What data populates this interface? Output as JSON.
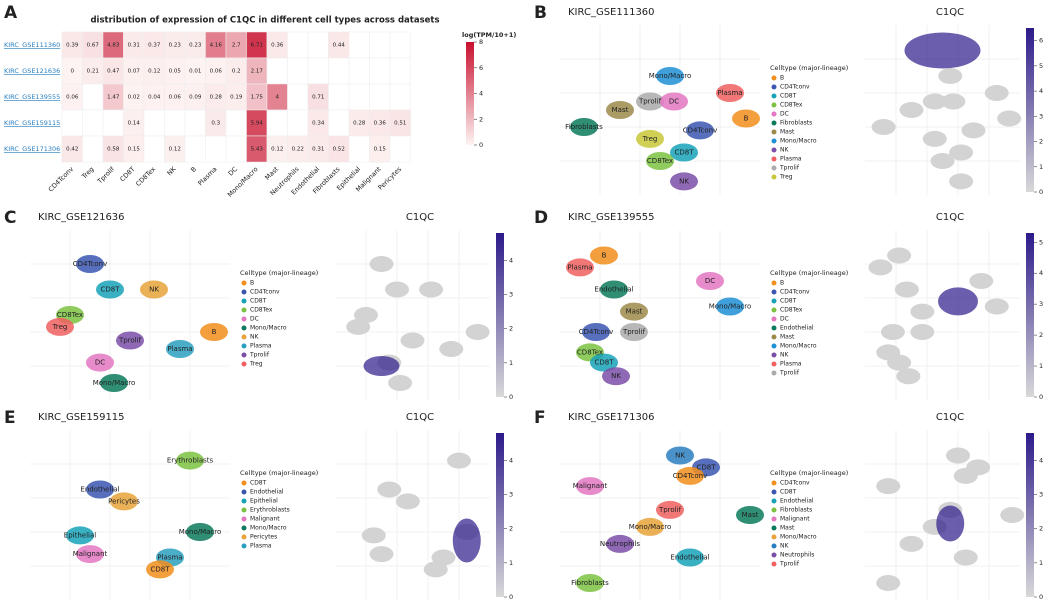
{
  "chart_data": [
    {
      "type": "heatmap",
      "label": "A",
      "title": "distribution of expression of C1QC in different cell types across datasets",
      "rows": [
        "KIRC_GSE111360",
        "KIRC_GSE121636",
        "KIRC_GSE139555",
        "KIRC_GSE159115",
        "KIRC_GSE171306"
      ],
      "categories": [
        "CD4Tconv",
        "Treg",
        "Tprolif",
        "CD8T",
        "CD8Tex",
        "NK",
        "B",
        "Plasma",
        "DC",
        "Mono/Macro",
        "Mast",
        "Neutrophils",
        "Endothelial",
        "Fibroblasts",
        "Epithelial",
        "Malignant",
        "Pericytes"
      ],
      "values": [
        [
          0.39,
          0.67,
          4.83,
          0.31,
          0.37,
          0.23,
          0.23,
          4.16,
          2.7,
          6.71,
          0.36,
          null,
          null,
          0.44,
          null,
          null,
          null
        ],
        [
          0,
          0.21,
          0.47,
          0.07,
          0.12,
          0.05,
          0.01,
          0.06,
          0.2,
          2.17,
          null,
          null,
          null,
          null,
          null,
          null,
          null
        ],
        [
          0.06,
          null,
          1.47,
          0.02,
          0.04,
          0.06,
          0.09,
          0.28,
          0.19,
          1.75,
          4,
          null,
          0.71,
          null,
          null,
          null,
          null
        ],
        [
          null,
          null,
          null,
          0.14,
          null,
          null,
          null,
          0.3,
          null,
          5.94,
          null,
          null,
          0.34,
          null,
          0.28,
          0.36,
          0.51
        ],
        [
          0.42,
          null,
          0.58,
          0.15,
          null,
          0.12,
          null,
          null,
          null,
          5.43,
          0.12,
          0.22,
          0.31,
          0.52,
          null,
          0.15,
          null
        ]
      ],
      "colorbar_title": "log(TPM/10+1)",
      "clim": [
        0,
        8
      ],
      "cticks": [
        0,
        2,
        4,
        6,
        8
      ],
      "color_low": "#fdf3f2",
      "color_high": "#c8102e"
    },
    {
      "type": "umap",
      "label": "B",
      "title": "KIRC_GSE111360",
      "feature": "C1QC",
      "legend_title": "Celltype (major-lineage)",
      "series": [
        {
          "name": "B",
          "color": "#f28e1c"
        },
        {
          "name": "CD4Tconv",
          "color": "#3a56b0"
        },
        {
          "name": "CD8T",
          "color": "#17a2b8"
        },
        {
          "name": "CD8Tex",
          "color": "#7cc242"
        },
        {
          "name": "DC",
          "color": "#e377c2"
        },
        {
          "name": "Fibroblasts",
          "color": "#0b7a5c"
        },
        {
          "name": "Mast",
          "color": "#9c8a4a"
        },
        {
          "name": "Mono/Macro",
          "color": "#1f8fd6"
        },
        {
          "name": "NK",
          "color": "#7b4fa8"
        },
        {
          "name": "Plasma",
          "color": "#f06060"
        },
        {
          "name": "Tprolif",
          "color": "#aaaaaa"
        },
        {
          "name": "Treg",
          "color": "#c8c83a"
        }
      ],
      "annotations": [
        "Mono/Macro",
        "Tprolif",
        "DC",
        "Mast",
        "Plasma",
        "B",
        "Fibroblasts",
        "Treg",
        "CD4Tconv",
        "CD8T",
        "CD8Tex",
        "NK"
      ],
      "clim": [
        0,
        6.5
      ],
      "cticks": [
        0,
        1,
        2,
        3,
        4,
        5,
        6
      ],
      "color_low": "#d9d9d9",
      "color_high": "#2c1a8a"
    },
    {
      "type": "umap",
      "label": "C",
      "title": "KIRC_GSE121636",
      "feature": "C1QC",
      "legend_title": "Celltype (major-lineage)",
      "series": [
        {
          "name": "B",
          "color": "#f28e1c"
        },
        {
          "name": "CD4Tconv",
          "color": "#3a56b0"
        },
        {
          "name": "CD8T",
          "color": "#17a2b8"
        },
        {
          "name": "CD8Tex",
          "color": "#7cc242"
        },
        {
          "name": "DC",
          "color": "#e377c2"
        },
        {
          "name": "Mono/Macro",
          "color": "#0b7a5c"
        },
        {
          "name": "NK",
          "color": "#e8a33a"
        },
        {
          "name": "Plasma",
          "color": "#2aa0c0"
        },
        {
          "name": "Tprolif",
          "color": "#7b4fa8"
        },
        {
          "name": "Treg",
          "color": "#f06060"
        }
      ],
      "annotations": [
        "CD4Tconv",
        "CD8T",
        "NK",
        "CD8Tex",
        "Treg",
        "B",
        "Plasma",
        "Tprolif",
        "DC",
        "Mono/Macro"
      ],
      "clim": [
        0,
        4.8
      ],
      "cticks": [
        0,
        1,
        2,
        3,
        4
      ],
      "color_low": "#d9d9d9",
      "color_high": "#2c1a8a"
    },
    {
      "type": "umap",
      "label": "D",
      "title": "KIRC_GSE139555",
      "feature": "C1QC",
      "legend_title": "Celltype (major-lineage)",
      "series": [
        {
          "name": "B",
          "color": "#f28e1c"
        },
        {
          "name": "CD4Tconv",
          "color": "#3a56b0"
        },
        {
          "name": "CD8T",
          "color": "#17a2b8"
        },
        {
          "name": "CD8Tex",
          "color": "#7cc242"
        },
        {
          "name": "DC",
          "color": "#e377c2"
        },
        {
          "name": "Endothelial",
          "color": "#0b7a5c"
        },
        {
          "name": "Mast",
          "color": "#9c8a4a"
        },
        {
          "name": "Mono/Macro",
          "color": "#1f8fd6"
        },
        {
          "name": "NK",
          "color": "#7b4fa8"
        },
        {
          "name": "Plasma",
          "color": "#f06060"
        },
        {
          "name": "Tprolif",
          "color": "#aaaaaa"
        }
      ],
      "annotations": [
        "B",
        "Plasma",
        "DC",
        "Endothelial",
        "Mast",
        "Mono/Macro",
        "CD4Tconv",
        "Tprolif",
        "CD8Tex",
        "CD8T",
        "NK"
      ],
      "clim": [
        0,
        5.3
      ],
      "cticks": [
        0,
        1,
        2,
        3,
        4,
        5
      ],
      "color_low": "#d9d9d9",
      "color_high": "#2c1a8a"
    },
    {
      "type": "umap",
      "label": "E",
      "title": "KIRC_GSE159115",
      "feature": "C1QC",
      "legend_title": "Celltype (major-lineage)",
      "series": [
        {
          "name": "CD8T",
          "color": "#f28e1c"
        },
        {
          "name": "Endothelial",
          "color": "#3a56b0"
        },
        {
          "name": "Epithelial",
          "color": "#17a2b8"
        },
        {
          "name": "Erythroblasts",
          "color": "#7cc242"
        },
        {
          "name": "Malignant",
          "color": "#e377c2"
        },
        {
          "name": "Mono/Macro",
          "color": "#0b7a5c"
        },
        {
          "name": "Pericytes",
          "color": "#e8a33a"
        },
        {
          "name": "Plasma",
          "color": "#2aa0c0"
        }
      ],
      "annotations": [
        "Erythroblasts",
        "Endothelial",
        "Pericytes",
        "Epithelial",
        "Mono/Macro",
        "Malignant",
        "Plasma",
        "CD8T"
      ],
      "clim": [
        0,
        4.8
      ],
      "cticks": [
        0,
        1,
        2,
        3,
        4
      ],
      "color_low": "#d9d9d9",
      "color_high": "#2c1a8a"
    },
    {
      "type": "umap",
      "label": "F",
      "title": "KIRC_GSE171306",
      "feature": "C1QC",
      "legend_title": "Celltype (major-lineage)",
      "series": [
        {
          "name": "CD4Tconv",
          "color": "#f28e1c"
        },
        {
          "name": "CD8T",
          "color": "#3a56b0"
        },
        {
          "name": "Endothelial",
          "color": "#17a2b8"
        },
        {
          "name": "Fibroblasts",
          "color": "#7cc242"
        },
        {
          "name": "Malignant",
          "color": "#e377c2"
        },
        {
          "name": "Mast",
          "color": "#0b7a5c"
        },
        {
          "name": "Mono/Macro",
          "color": "#e8a33a"
        },
        {
          "name": "NK",
          "color": "#2a7fc0"
        },
        {
          "name": "Neutrophils",
          "color": "#7b4fa8"
        },
        {
          "name": "Tprolif",
          "color": "#f06060"
        }
      ],
      "annotations": [
        "NK",
        "CD8T",
        "CD4Tconv",
        "Malignant",
        "Tprolif",
        "Mast",
        "Mono/Macro",
        "Neutrophils",
        "Endothelial",
        "Fibroblasts"
      ],
      "clim": [
        0,
        4.8
      ],
      "cticks": [
        0,
        1,
        2,
        3,
        4
      ],
      "color_low": "#d9d9d9",
      "color_high": "#2c1a8a"
    }
  ]
}
